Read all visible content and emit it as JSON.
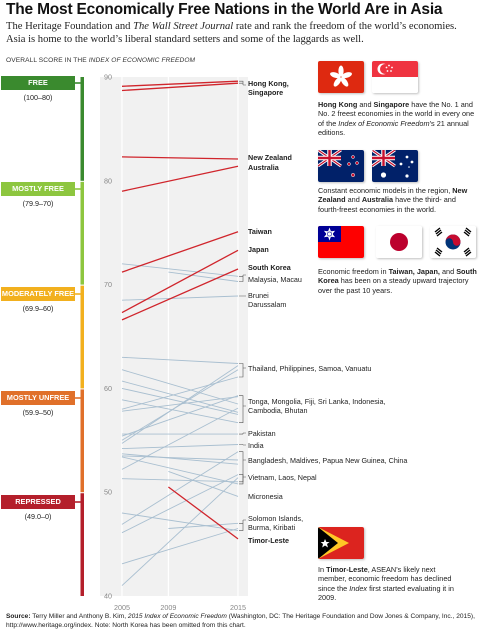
{
  "title": "The Most Economically Free Nations in the World Are in Asia",
  "subtitle_parts": [
    "The Heritage Foundation and ",
    "The Wall Street Journal",
    " rate and rank the freedom of the world’s economies. Asia is home to the world’s liberal standard setters and some of the laggards as well."
  ],
  "axis_caption_parts": [
    "OVERALL SCORE IN THE ",
    "INDEX OF ECONOMIC FREEDOM"
  ],
  "categories": [
    {
      "label": "FREE",
      "range": "(100–80)",
      "color": "#3a8a2e"
    },
    {
      "label": "MOSTLY FREE",
      "range": "(79.9–70)",
      "color": "#8dc63f"
    },
    {
      "label": "MODERATELY FREE",
      "range": "(69.9–60)",
      "color": "#f2b01e"
    },
    {
      "label": "MOSTLY UNFREE",
      "range": "(59.9–50)",
      "color": "#e0702a"
    },
    {
      "label": "REPRESSED",
      "range": "(49.0–0)",
      "color": "#b41f2b"
    }
  ],
  "chart_data": {
    "type": "line",
    "x": [
      2005,
      2009,
      2015
    ],
    "ylim": [
      40,
      90
    ],
    "yticks": [
      40,
      50,
      60,
      70,
      80,
      90
    ],
    "highlight_color": "#d0252c",
    "other_color": "#a9bfd0",
    "highlighted_series": [
      {
        "name": "Hong Kong",
        "points": [
          [
            2005,
            89.1
          ],
          [
            2015,
            89.6
          ]
        ]
      },
      {
        "name": "Singapore",
        "points": [
          [
            2005,
            88.7
          ],
          [
            2015,
            89.4
          ]
        ]
      },
      {
        "name": "New Zealand",
        "points": [
          [
            2005,
            82.3
          ],
          [
            2015,
            82.1
          ]
        ]
      },
      {
        "name": "Australia",
        "points": [
          [
            2005,
            79.0
          ],
          [
            2015,
            81.4
          ]
        ]
      },
      {
        "name": "Taiwan",
        "points": [
          [
            2005,
            71.2
          ],
          [
            2015,
            75.1
          ]
        ]
      },
      {
        "name": "Japan",
        "points": [
          [
            2005,
            67.3
          ],
          [
            2015,
            73.3
          ]
        ]
      },
      {
        "name": "South Korea",
        "points": [
          [
            2005,
            66.6
          ],
          [
            2015,
            71.5
          ]
        ]
      },
      {
        "name": "Timor-Leste",
        "points": [
          [
            2009,
            50.5
          ],
          [
            2015,
            45.5
          ]
        ]
      }
    ],
    "other_series": [
      {
        "name": "Malaysia",
        "points": [
          [
            2005,
            72.0
          ],
          [
            2015,
            70.8
          ]
        ]
      },
      {
        "name": "Macau",
        "points": [
          [
            2009,
            71.2
          ],
          [
            2015,
            70.3
          ]
        ]
      },
      {
        "name": "Brunei Darussalam",
        "points": [
          [
            2005,
            68.5
          ],
          [
            2015,
            68.9
          ]
        ]
      },
      {
        "name": "Thailand",
        "points": [
          [
            2005,
            63.0
          ],
          [
            2015,
            62.4
          ]
        ]
      },
      {
        "name": "Philippines",
        "points": [
          [
            2005,
            54.7
          ],
          [
            2015,
            62.2
          ]
        ]
      },
      {
        "name": "Samoa",
        "points": [
          [
            2005,
            58.0
          ],
          [
            2015,
            61.1
          ]
        ]
      },
      {
        "name": "Vanuatu",
        "points": [
          [
            2005,
            55.0
          ],
          [
            2015,
            61.8
          ]
        ]
      },
      {
        "name": "Tonga",
        "points": [
          [
            2005,
            55.4
          ],
          [
            2015,
            59.3
          ]
        ]
      },
      {
        "name": "Mongolia",
        "points": [
          [
            2005,
            58.9
          ],
          [
            2015,
            56.7
          ]
        ]
      },
      {
        "name": "Fiji",
        "points": [
          [
            2005,
            57.8
          ],
          [
            2015,
            59.2
          ]
        ]
      },
      {
        "name": "Sri Lanka",
        "points": [
          [
            2005,
            60.7
          ],
          [
            2015,
            57.7
          ]
        ]
      },
      {
        "name": "Indonesia",
        "points": [
          [
            2005,
            52.2
          ],
          [
            2015,
            58.1
          ]
        ]
      },
      {
        "name": "Cambodia",
        "points": [
          [
            2005,
            60.0
          ],
          [
            2015,
            57.5
          ]
        ]
      },
      {
        "name": "Bhutan",
        "points": [
          [
            2005,
            61.8
          ],
          [
            2015,
            58.5
          ]
        ]
      },
      {
        "name": "Pakistan",
        "points": [
          [
            2005,
            55.6
          ],
          [
            2015,
            55.6
          ]
        ]
      },
      {
        "name": "India",
        "points": [
          [
            2005,
            54.2
          ],
          [
            2015,
            54.6
          ]
        ]
      },
      {
        "name": "Bangladesh",
        "points": [
          [
            2005,
            46.9
          ],
          [
            2015,
            53.9
          ]
        ]
      },
      {
        "name": "Maldives",
        "points": [
          [
            2005,
            51.3
          ],
          [
            2015,
            51.0
          ]
        ]
      },
      {
        "name": "Papua New Guinea",
        "points": [
          [
            2005,
            53.5
          ],
          [
            2015,
            53.1
          ]
        ]
      },
      {
        "name": "China",
        "points": [
          [
            2005,
            53.7
          ],
          [
            2015,
            52.7
          ]
        ]
      },
      {
        "name": "Vietnam",
        "points": [
          [
            2005,
            46.1
          ],
          [
            2015,
            51.7
          ]
        ]
      },
      {
        "name": "Laos",
        "points": [
          [
            2005,
            41.0
          ],
          [
            2015,
            51.4
          ]
        ]
      },
      {
        "name": "Nepal",
        "points": [
          [
            2005,
            53.4
          ],
          [
            2015,
            50.8
          ]
        ]
      },
      {
        "name": "Micronesia",
        "points": [
          [
            2009,
            52.0
          ],
          [
            2015,
            49.6
          ]
        ]
      },
      {
        "name": "Solomon Islands",
        "points": [
          [
            2009,
            46.5
          ],
          [
            2015,
            47.0
          ]
        ]
      },
      {
        "name": "Burma",
        "points": [
          [
            2005,
            43.1
          ],
          [
            2015,
            46.5
          ]
        ]
      },
      {
        "name": "Kiribati",
        "points": [
          [
            2005,
            48.0
          ],
          [
            2015,
            46.3
          ]
        ]
      }
    ]
  },
  "labels": {
    "hk_sg": [
      "Hong Kong,",
      "Singapore"
    ],
    "nz": "New Zealand",
    "au": "Australia",
    "tw": "Taiwan",
    "jp": "Japan",
    "kr": "South Korea",
    "my_mo": "Malaysia, Macau",
    "bn": [
      "Brunei",
      "Darussalam"
    ],
    "th": "Thailand, Philippines, Samoa, Vanuatu",
    "tonga": [
      "Tonga, Mongolia, Fiji, Sri Lanka, Indonesia,",
      "Cambodia, Bhutan"
    ],
    "pk": "Pakistan",
    "in": "India",
    "bd": "Bangladesh, Maldives, Papua New Guinea, China",
    "vn": "Vietnam, Laos, Nepal",
    "fm": "Micronesia",
    "sb": [
      "Solomon Islands,",
      "Burma, Kiribati"
    ],
    "tl": "Timor-Leste"
  },
  "notes": {
    "hk": {
      "b1": "Hong Kong",
      "t1": " and ",
      "b2": "Singapore",
      "t2": " have the No. 1 and No. 2 freest economies in the world in every one of the ",
      "i1": "Index of Economic Freedom",
      "t3": "’s 21 annual editions."
    },
    "nz": {
      "t1": "Constant economic models in the region, ",
      "b1": "New Zealand",
      "t2": " and ",
      "b2": "Australia",
      "t3": " have the third- and fourth-freest economies in the world."
    },
    "tw": {
      "t1": "Economic freedom in ",
      "b1": "Taiwan, Japan,",
      "t2": " and ",
      "b2": "South Korea",
      "t3": " has been on a steady upward trajectory over the past 10 years."
    },
    "tl": {
      "t1": "In ",
      "b1": "Timor-Leste",
      "t2": ", ASEAN’s likely next member, economic freedom has declined since the ",
      "i1": "Index",
      "t3": " first started evaluating it in 2009."
    }
  },
  "flags": [
    "hong-kong-flag",
    "singapore-flag",
    "new-zealand-flag",
    "australia-flag",
    "taiwan-flag",
    "japan-flag",
    "south-korea-flag",
    "timor-leste-flag"
  ],
  "source": {
    "b": "Source:",
    "t1": " Terry Miller and Anthony B. Kim, ",
    "i1": "2015 Index of Economic Freedom",
    "t2": " (Washington, DC: The Heritage Foundation and Dow Jones & Company, Inc., 2015), http://www.heritage.org/index. Note: North Korea has been omitted from this chart."
  }
}
